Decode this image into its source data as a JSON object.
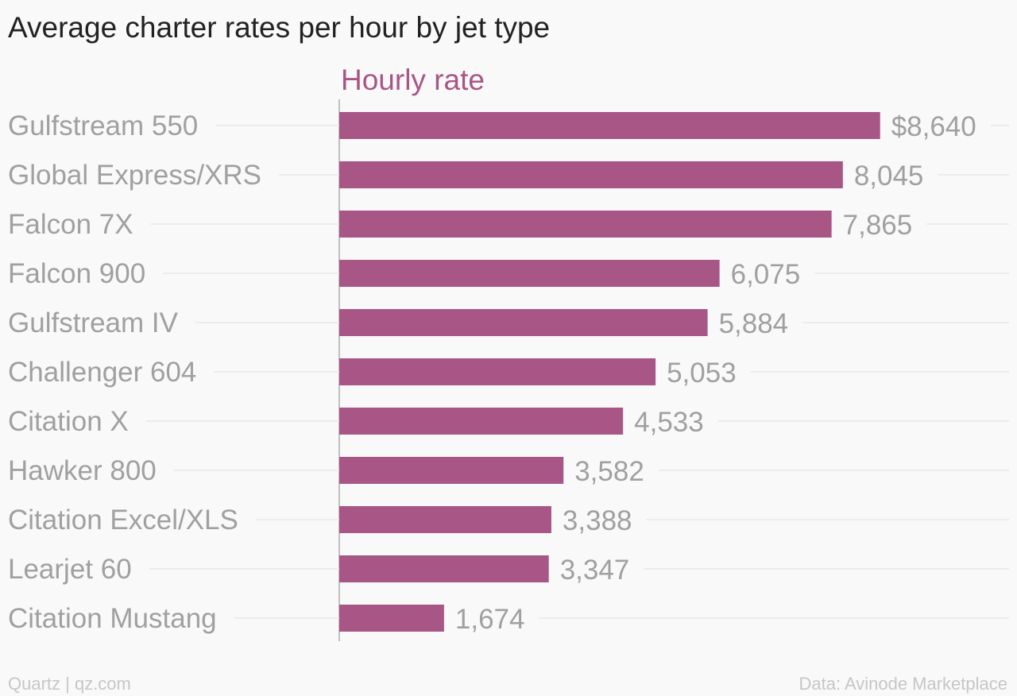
{
  "page": {
    "title": "Average charter rates per hour by jet type",
    "footer_left": "Quartz | qz.com",
    "footer_right": "Data: Avinode Marketplace"
  },
  "chart_data": {
    "type": "bar",
    "orientation": "horizontal",
    "title": "Average charter rates per hour by jet type",
    "categories": [
      "Gulfstream 550",
      "Global Express/XRS",
      "Falcon 7X",
      "Falcon 900",
      "Gulfstream IV",
      "Challenger 604",
      "Citation X",
      "Hawker 800",
      "Citation Excel/XLS",
      "Learjet 60",
      "Citation Mustang"
    ],
    "series": [
      {
        "name": "Hourly rate",
        "values": [
          8640,
          8045,
          7865,
          6075,
          5884,
          5053,
          4533,
          3582,
          3388,
          3347,
          1674
        ]
      }
    ],
    "value_labels": [
      "$8,640",
      "8,045",
      "7,865",
      "6,075",
      "5,884",
      "5,053",
      "4,533",
      "3,582",
      "3,388",
      "3,347",
      "1,674"
    ],
    "xlim": [
      0,
      10700
    ],
    "grid": true,
    "colors": {
      "bar": "#a85686",
      "series_label": "#a85686",
      "category_label": "#a0a0a0",
      "value_label": "#a0a0a0",
      "gridline": "#e8e8e8",
      "axis": "#888888"
    }
  }
}
